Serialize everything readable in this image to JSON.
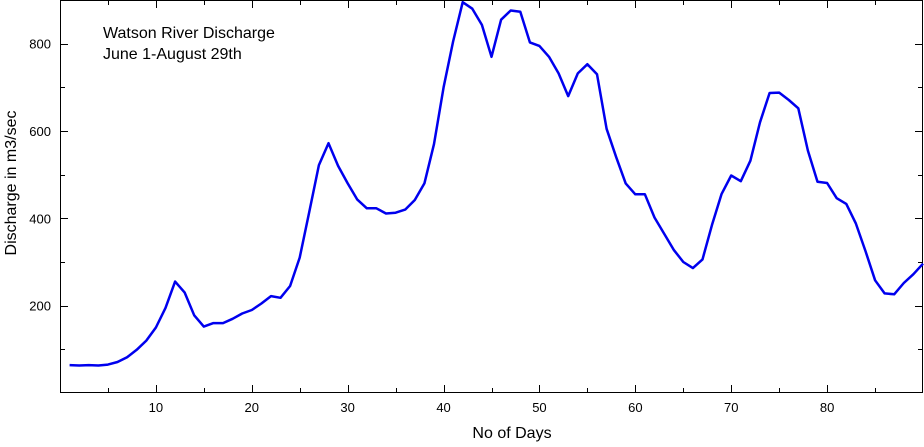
{
  "chart_data": {
    "type": "line",
    "title": "Watson River Discharge",
    "subtitle": "June 1-August 29th",
    "xlabel": "No of Days",
    "ylabel": "Discharge in m3/sec",
    "xlim": [
      0,
      90
    ],
    "ylim": [
      0,
      900
    ],
    "xticks": [
      10,
      20,
      30,
      40,
      50,
      60,
      70,
      80
    ],
    "yticks": [
      200,
      400,
      600,
      800
    ],
    "grid": false,
    "line_color": "#0000ee",
    "series": [
      {
        "x": [
          1,
          2,
          3,
          4,
          5,
          6,
          7,
          8,
          9,
          10,
          11,
          12,
          13,
          14,
          15,
          16,
          17,
          18,
          19,
          20,
          21,
          22,
          23,
          24,
          25,
          26,
          27,
          28,
          29,
          30,
          31,
          32,
          33,
          34,
          35,
          36,
          37,
          38,
          39,
          40,
          41,
          42,
          43,
          44,
          45,
          46,
          47,
          48,
          49,
          50,
          51,
          52,
          53,
          54,
          55,
          56,
          57,
          58,
          59,
          60,
          61,
          62,
          63,
          64,
          65,
          66,
          67,
          68,
          69,
          70,
          71,
          72,
          73,
          74,
          75,
          76,
          77,
          78,
          79,
          80,
          81,
          82,
          83,
          84,
          85,
          86,
          87,
          88,
          89,
          90
        ],
        "values": [
          64,
          63,
          64,
          63,
          65,
          71,
          82,
          99,
          120,
          150,
          195,
          255,
          230,
          178,
          152,
          160,
          160,
          170,
          182,
          190,
          205,
          222,
          218,
          245,
          310,
          415,
          522,
          572,
          520,
          480,
          443,
          423,
          423,
          411,
          413,
          420,
          442,
          480,
          570,
          700,
          805,
          895,
          880,
          843,
          770,
          855,
          876,
          873,
          803,
          795,
          770,
          732,
          680,
          732,
          753,
          730,
          605,
          540,
          480,
          455,
          455,
          402,
          365,
          328,
          300,
          286,
          306,
          385,
          456,
          498,
          485,
          532,
          620,
          687,
          688,
          671,
          652,
          555,
          484,
          481,
          446,
          433,
          388,
          325,
          258,
          228,
          226,
          252,
          272,
          296
        ]
      }
    ]
  }
}
